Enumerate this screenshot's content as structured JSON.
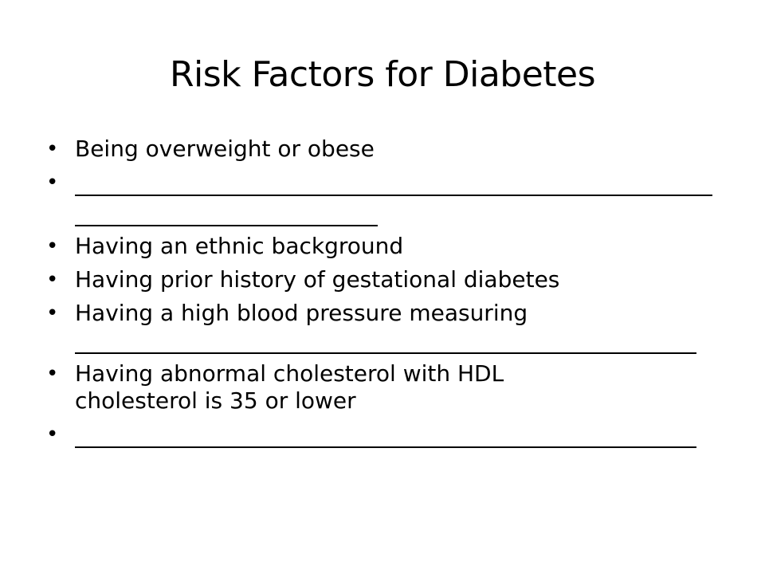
{
  "slide": {
    "title": "Risk Factors for Diabetes",
    "bullet_symbol": "•",
    "items": [
      {
        "text": "Being overweight or obese"
      },
      {
        "text": ""
      },
      {
        "text": "Having an ethnic background"
      },
      {
        "text": "Having prior history of gestational diabetes"
      },
      {
        "text": "Having a high blood pressure measuring"
      },
      {
        "line1": "Having abnormal cholesterol with HDL",
        "line2": "cholesterol is 35 or lower"
      },
      {
        "text": ""
      }
    ]
  }
}
